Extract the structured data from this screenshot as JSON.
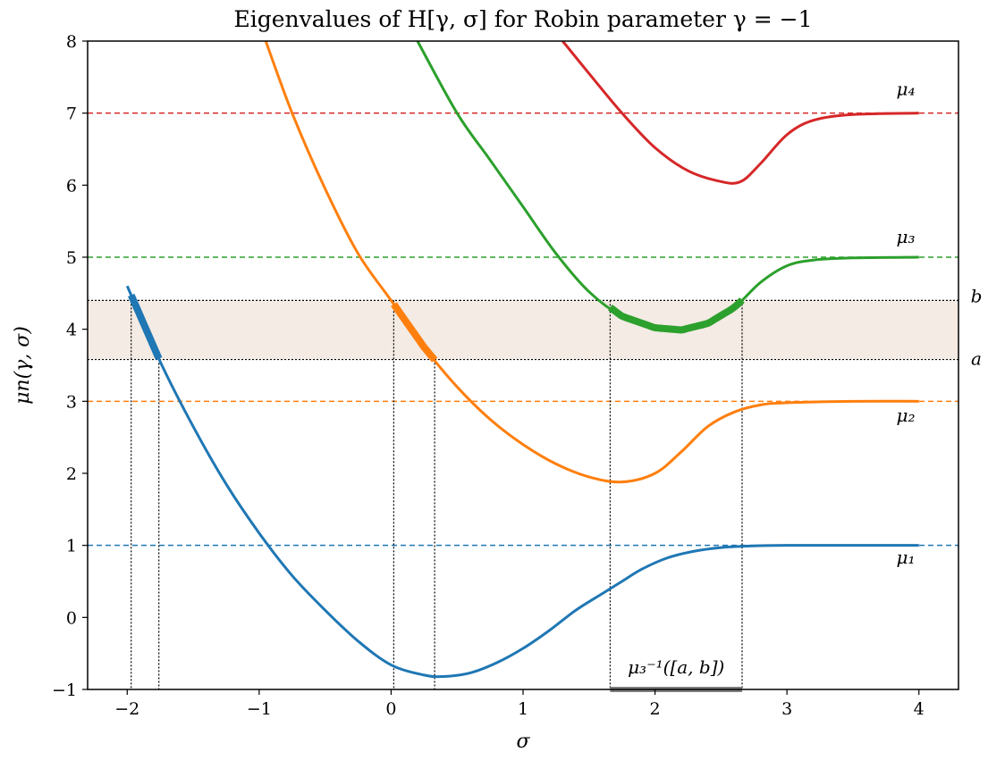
{
  "chart_data": {
    "type": "line",
    "title": "Eigenvalues of H[γ, σ] for Robin parameter γ = −1",
    "xlabel": "σ",
    "ylabel": "μn(γ, σ)",
    "xlim": [
      -2.3,
      4.3
    ],
    "ylim": [
      -1,
      8
    ],
    "xticks": [
      -2,
      -1,
      0,
      1,
      2,
      3,
      4
    ],
    "yticks": [
      -1,
      0,
      1,
      2,
      3,
      4,
      5,
      6,
      7,
      8
    ],
    "xtick_labels": [
      "−2",
      "−1",
      "0",
      "1",
      "2",
      "3",
      "4"
    ],
    "ytick_labels": [
      "−1",
      "0",
      "1",
      "2",
      "3",
      "4",
      "5",
      "6",
      "7",
      "8"
    ],
    "grid": false,
    "band": {
      "a": 3.58,
      "b": 4.4,
      "color": "#f3ebe4",
      "label_a": "a",
      "label_b": "b"
    },
    "preimage_label": "μ₃⁻¹([a, b])",
    "preimage_interval": [
      1.66,
      2.66
    ],
    "vlines": [
      -1.97,
      -1.76,
      0.02,
      0.33,
      1.66,
      2.66
    ],
    "asymptotes": [
      {
        "y": 1,
        "color": "#1f77b4"
      },
      {
        "y": 3,
        "color": "#ff7f0e"
      },
      {
        "y": 5,
        "color": "#2ca02c"
      },
      {
        "y": 7,
        "color": "#d62728"
      }
    ],
    "series": [
      {
        "name": "μ1",
        "color": "#1f77b4",
        "x": [
          -2.0,
          -1.75,
          -1.5,
          -1.25,
          -1.0,
          -0.75,
          -0.5,
          -0.25,
          0.0,
          0.25,
          0.4,
          0.6,
          0.8,
          1.0,
          1.2,
          1.4,
          1.6,
          1.75,
          1.9,
          2.1,
          2.3,
          2.5,
          2.7,
          3.0,
          3.5,
          4.0
        ],
        "y": [
          4.6,
          3.55,
          2.65,
          1.85,
          1.17,
          0.58,
          0.1,
          -0.33,
          -0.66,
          -0.8,
          -0.82,
          -0.77,
          -0.63,
          -0.43,
          -0.18,
          0.1,
          0.33,
          0.5,
          0.67,
          0.83,
          0.92,
          0.97,
          0.99,
          1.0,
          1.0,
          1.0
        ],
        "highlight_x": [
          -1.97,
          -1.76
        ]
      },
      {
        "name": "μ2",
        "color": "#ff7f0e",
        "x": [
          -0.95,
          -0.75,
          -0.5,
          -0.25,
          0.0,
          0.25,
          0.5,
          0.75,
          1.0,
          1.25,
          1.5,
          1.75,
          2.0,
          2.2,
          2.4,
          2.6,
          2.8,
          3.0,
          3.5,
          4.0
        ],
        "y": [
          8.0,
          7.0,
          5.95,
          5.05,
          4.4,
          3.75,
          3.2,
          2.75,
          2.4,
          2.13,
          1.95,
          1.88,
          2.0,
          2.3,
          2.65,
          2.85,
          2.95,
          2.98,
          3.0,
          3.0
        ],
        "highlight_x": [
          0.02,
          0.33
        ]
      },
      {
        "name": "μ3",
        "color": "#2ca02c",
        "x": [
          0.2,
          0.5,
          0.75,
          1.0,
          1.25,
          1.5,
          1.75,
          2.0,
          2.2,
          2.4,
          2.6,
          2.8,
          3.0,
          3.2,
          3.5,
          4.0
        ],
        "y": [
          8.0,
          7.0,
          6.35,
          5.7,
          5.05,
          4.52,
          4.18,
          4.02,
          3.99,
          4.08,
          4.3,
          4.65,
          4.88,
          4.96,
          4.99,
          5.0
        ],
        "highlight_x": [
          1.66,
          2.66
        ]
      },
      {
        "name": "μ4",
        "color": "#d62728",
        "x": [
          1.3,
          1.5,
          1.75,
          2.0,
          2.25,
          2.5,
          2.65,
          2.8,
          3.0,
          3.2,
          3.5,
          4.0
        ],
        "y": [
          8.0,
          7.55,
          7.0,
          6.52,
          6.2,
          6.05,
          6.05,
          6.3,
          6.7,
          6.9,
          6.98,
          7.0
        ]
      }
    ]
  }
}
